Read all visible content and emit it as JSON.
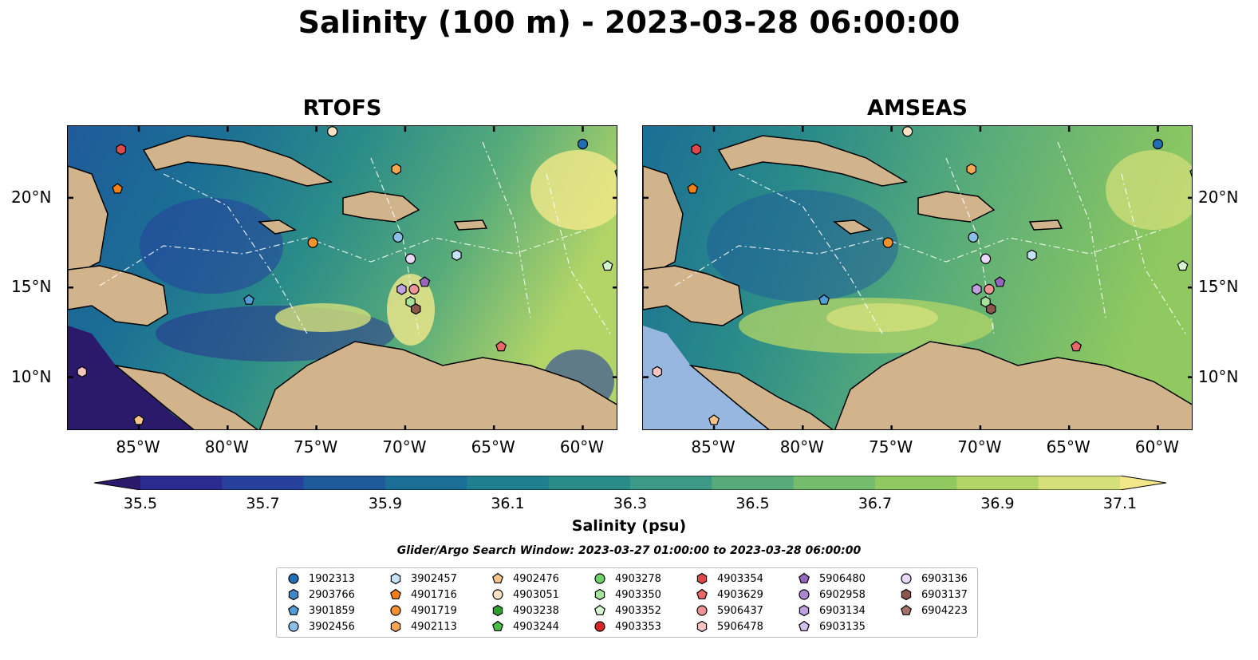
{
  "title": "Salinity (100 m) - 2023-03-28 06:00:00",
  "panels": [
    {
      "id": "rtofs",
      "title": "RTOFS"
    },
    {
      "id": "amseas",
      "title": "AMSEAS"
    }
  ],
  "map_extent": {
    "lon_min": -89,
    "lon_max": -58,
    "lat_min": 7,
    "lat_max": 24
  },
  "lon_ticks": [
    "85°W",
    "80°W",
    "75°W",
    "70°W",
    "65°W",
    "60°W"
  ],
  "lon_tick_values": [
    -85,
    -80,
    -75,
    -70,
    -65,
    -60
  ],
  "lat_ticks": [
    "10°N",
    "15°N",
    "20°N"
  ],
  "lat_tick_values": [
    10,
    15,
    20
  ],
  "colorbar": {
    "label": "Salinity (psu)",
    "min": 35.4,
    "max": 37.2,
    "ticks": [
      "35.5",
      "35.7",
      "35.9",
      "36.1",
      "36.3",
      "36.5",
      "36.7",
      "36.9",
      "37.1"
    ],
    "tick_values": [
      35.5,
      35.7,
      35.9,
      36.1,
      36.3,
      36.5,
      36.7,
      36.9,
      37.1
    ],
    "colors": [
      "#2b1a6b",
      "#2a2a8f",
      "#27409c",
      "#1f5a9a",
      "#1b6e95",
      "#1f7f8f",
      "#2a8b89",
      "#3c9985",
      "#57ab7a",
      "#73bd6c",
      "#90c95f",
      "#b3d567",
      "#d5e07a",
      "#f2e88a"
    ]
  },
  "search_window": "Glider/Argo Search Window: 2023-03-27 01:00:00 to 2023-03-28 06:00:00",
  "colors": {
    "land": "#d2b48c",
    "shallow_water": "#97b6e0"
  },
  "platforms": [
    {
      "id": "1902313",
      "marker": "circle",
      "color": "#1f6fb4",
      "lon": -60.0,
      "lat": 23.0
    },
    {
      "id": "2903766",
      "marker": "hexagon",
      "color": "#3d88c7"
    },
    {
      "id": "3901859",
      "marker": "pentagon",
      "color": "#4f9cd6",
      "lon": -78.8,
      "lat": 14.3
    },
    {
      "id": "3902456",
      "marker": "circle",
      "color": "#8cbfe8",
      "lon": -70.4,
      "lat": 17.8
    },
    {
      "id": "3902457",
      "marker": "hexagon",
      "color": "#c5e3f7",
      "lon": -67.1,
      "lat": 16.8
    },
    {
      "id": "4901716",
      "marker": "pentagon",
      "color": "#f57f17",
      "lon": -86.2,
      "lat": 20.5
    },
    {
      "id": "4901719",
      "marker": "circle",
      "color": "#f5922d",
      "lon": -75.2,
      "lat": 17.5
    },
    {
      "id": "4902113",
      "marker": "hexagon",
      "color": "#f7a654",
      "lon": -70.5,
      "lat": 21.6
    },
    {
      "id": "4902476",
      "marker": "pentagon",
      "color": "#f8c48c",
      "lon": -85.0,
      "lat": 7.6
    },
    {
      "id": "4903051",
      "marker": "circle",
      "color": "#fbe1c4",
      "lon": -74.1,
      "lat": 23.7
    },
    {
      "id": "4903238",
      "marker": "hexagon",
      "color": "#2ca02c"
    },
    {
      "id": "4903244",
      "marker": "pentagon",
      "color": "#4cbd45",
      "lon": -57.9,
      "lat": 21.4
    },
    {
      "id": "4903278",
      "marker": "circle",
      "color": "#6fd16a"
    },
    {
      "id": "4903350",
      "marker": "hexagon",
      "color": "#a4e39a",
      "lon": -69.7,
      "lat": 14.2
    },
    {
      "id": "4903352",
      "marker": "pentagon",
      "color": "#d4f5cf",
      "lon": -58.6,
      "lat": 16.2
    },
    {
      "id": "4903353",
      "marker": "circle",
      "color": "#d62728"
    },
    {
      "id": "4903354",
      "marker": "hexagon",
      "color": "#e0484a",
      "lon": -86.0,
      "lat": 22.7
    },
    {
      "id": "4903629",
      "marker": "pentagon",
      "color": "#e8686a",
      "lon": -64.6,
      "lat": 11.7
    },
    {
      "id": "5906437",
      "marker": "circle",
      "color": "#f09394",
      "lon": -69.5,
      "lat": 14.9
    },
    {
      "id": "5906478",
      "marker": "hexagon",
      "color": "#f7c4c4",
      "lon": -88.2,
      "lat": 10.3
    },
    {
      "id": "5906480",
      "marker": "pentagon",
      "color": "#9467bd",
      "lon": -68.9,
      "lat": 15.3
    },
    {
      "id": "6902958",
      "marker": "circle",
      "color": "#a987cf"
    },
    {
      "id": "6903134",
      "marker": "hexagon",
      "color": "#bfa0e0",
      "lon": -70.2,
      "lat": 14.9
    },
    {
      "id": "6903135",
      "marker": "pentagon",
      "color": "#d6c0ef"
    },
    {
      "id": "6903136",
      "marker": "circle",
      "color": "#ead9f8",
      "lon": -69.7,
      "lat": 16.6
    },
    {
      "id": "6903137",
      "marker": "hexagon",
      "color": "#8c564b",
      "lon": -69.4,
      "lat": 13.8
    },
    {
      "id": "6904223",
      "marker": "pentagon",
      "color": "#a5726a"
    }
  ]
}
